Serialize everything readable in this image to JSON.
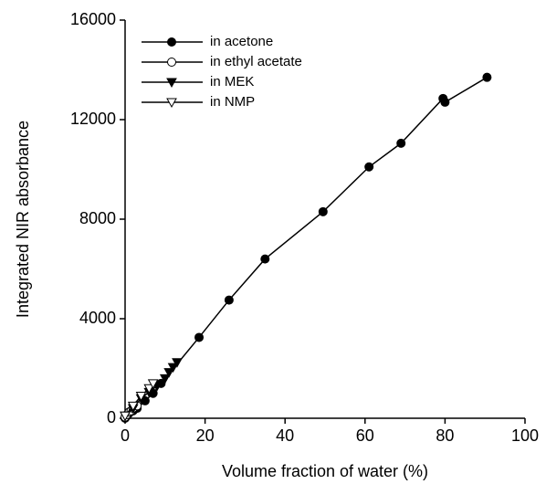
{
  "chart_data": {
    "type": "line",
    "xlabel": "Volume fraction of water (%)",
    "ylabel": "Integrated NIR absorbance",
    "xlim": [
      0,
      100
    ],
    "xticks": [
      0,
      20,
      40,
      60,
      80,
      100
    ],
    "ylim": [
      0,
      16000
    ],
    "yticks": [
      0,
      4000,
      8000,
      12000,
      16000
    ],
    "legend": "upper left",
    "series": [
      {
        "name": "in acetone",
        "color": "#000000",
        "marker": "circle",
        "x": [
          0,
          0.5,
          1,
          2,
          3,
          5,
          7,
          9,
          18.5,
          26,
          35,
          49.5,
          61,
          69,
          79.5,
          80,
          90.5
        ],
        "values": [
          0,
          100,
          200,
          300,
          400,
          700,
          1000,
          1400,
          3250,
          4750,
          6400,
          8300,
          10100,
          11050,
          12850,
          12700,
          13700
        ]
      },
      {
        "name": "in ethyl acetate",
        "color": "#000000",
        "marker": "circle-open",
        "x": [
          0,
          0.5,
          1,
          1.5,
          2,
          3
        ],
        "values": [
          50,
          150,
          250,
          300,
          400,
          500
        ]
      },
      {
        "name": "in MEK",
        "color": "#000000",
        "marker": "triangle-down",
        "x": [
          0,
          2,
          4,
          6,
          8,
          10,
          11,
          12,
          13
        ],
        "values": [
          100,
          400,
          800,
          1050,
          1300,
          1600,
          1850,
          2050,
          2250
        ]
      },
      {
        "name": "in NMP",
        "color": "#000000",
        "marker": "triangle-down-open",
        "x": [
          0,
          2,
          4,
          6,
          7
        ],
        "values": [
          100,
          500,
          900,
          1200,
          1400
        ]
      }
    ]
  }
}
